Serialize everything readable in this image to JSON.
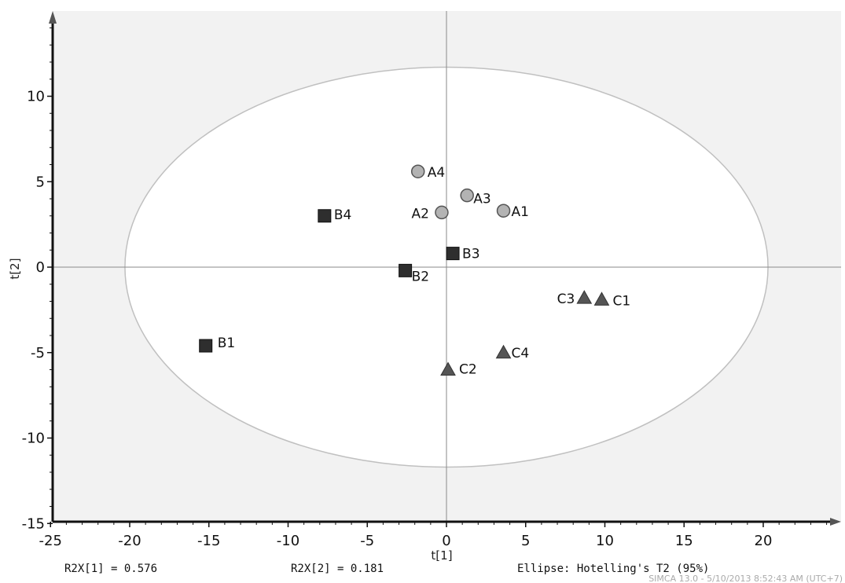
{
  "chart_data": {
    "type": "scatter",
    "xlabel": "t[1]",
    "ylabel": "t[2]",
    "xlim": [
      -25,
      25
    ],
    "ylim": [
      -15,
      15
    ],
    "xticks": [
      -25,
      -20,
      -15,
      -10,
      -5,
      0,
      5,
      10,
      15,
      20
    ],
    "yticks": [
      -15,
      -10,
      -5,
      0,
      5,
      10
    ],
    "grid": false,
    "ellipse": {
      "label": "Ellipse: Hotelling's T2 (95%)",
      "rx": 20.3,
      "ry": 11.7
    },
    "series": [
      {
        "marker": "circle",
        "color": "#b3b3b3",
        "points": [
          {
            "label": "A1",
            "x": 3.6,
            "y": 3.3
          },
          {
            "label": "A2",
            "x": -0.3,
            "y": 3.2
          },
          {
            "label": "A3",
            "x": 1.3,
            "y": 4.2
          },
          {
            "label": "A4",
            "x": -1.8,
            "y": 5.6
          }
        ]
      },
      {
        "marker": "square",
        "color": "#2e2e2e",
        "points": [
          {
            "label": "B1",
            "x": -15.2,
            "y": -4.6
          },
          {
            "label": "B2",
            "x": -2.6,
            "y": -0.2
          },
          {
            "label": "B3",
            "x": 0.4,
            "y": 0.8
          },
          {
            "label": "B4",
            "x": -7.7,
            "y": 3.0
          }
        ]
      },
      {
        "marker": "triangle",
        "color": "#555555",
        "points": [
          {
            "label": "C1",
            "x": 9.8,
            "y": -1.9
          },
          {
            "label": "C2",
            "x": 0.1,
            "y": -6.0
          },
          {
            "label": "C3",
            "x": 8.7,
            "y": -1.8
          },
          {
            "label": "C4",
            "x": 3.6,
            "y": -5.0
          }
        ]
      }
    ]
  },
  "footer": {
    "r2x1": "R2X[1] = 0.576",
    "r2x2": "R2X[2] = 0.181",
    "ellipse_label": "Ellipse: Hotelling's T2 (95%)",
    "watermark": "SIMCA 13.0 - 5/10/2013 8:52:43 AM (UTC+7)"
  },
  "colors": {
    "plot_background": "#f2f2f2",
    "ellipse_fill": "#ffffff",
    "ellipse_stroke": "#c0c0c0",
    "axis": "#111111"
  }
}
